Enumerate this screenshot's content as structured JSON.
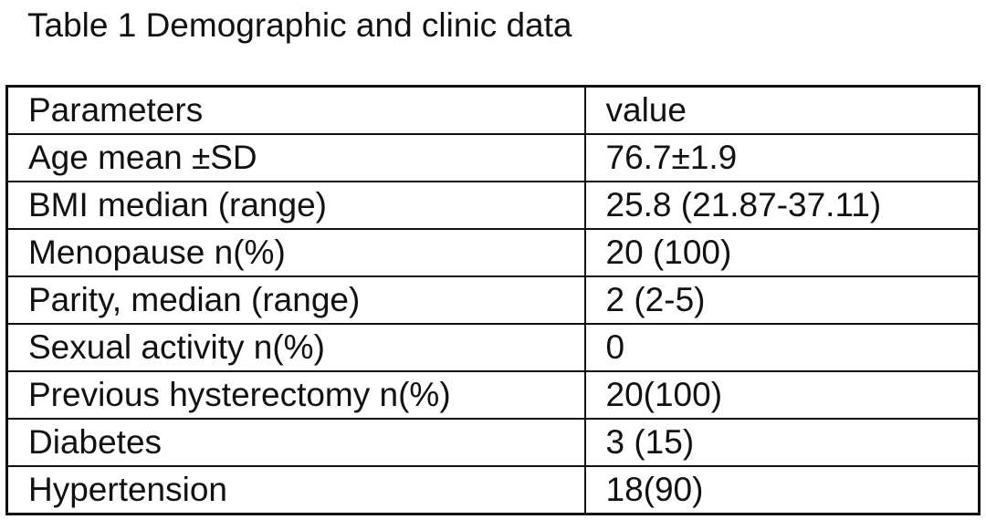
{
  "title": "Table 1 Demographic and clinic data",
  "table": {
    "header": [
      "Parameters",
      "value"
    ],
    "rows": [
      [
        "Age mean ±SD",
        "76.7±1.9"
      ],
      [
        "BMI median (range)",
        "25.8 (21.87-37.11)"
      ],
      [
        "Menopause n(%)",
        "20 (100)"
      ],
      [
        "Parity, median (range)",
        "2 (2-5)"
      ],
      [
        "Sexual activity n(%)",
        "0"
      ],
      [
        "Previous hysterectomy n(%)",
        "20(100)"
      ],
      [
        "Diabetes",
        "3 (15)"
      ],
      [
        "Hypertension",
        "18(90)"
      ]
    ]
  }
}
